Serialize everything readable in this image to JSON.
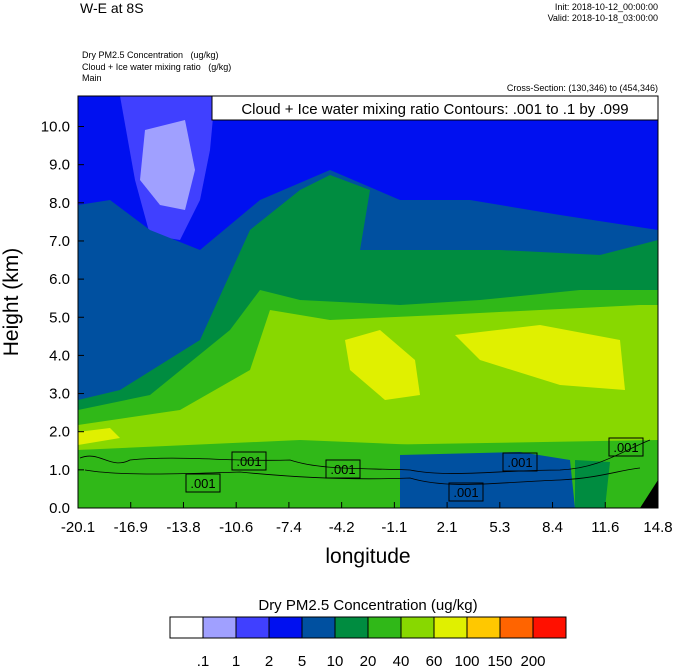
{
  "header": {
    "title": "W-E at 8S",
    "init": "Init: 2018-10-12_00:00:00",
    "valid": "Valid: 2018-10-18_03:00:00",
    "fields": [
      "Dry PM2.5 Concentration   (ug/kg)",
      "Cloud + Ice water mixing ratio   (g/kg)",
      "Main"
    ],
    "cross_section": "Cross-Section: (130,346) to (454,346)"
  },
  "chart_data": {
    "type": "heatmap",
    "title": "Cloud + Ice water mixing ratio Contours: .001 to .1 by .099",
    "xlabel": "longitude",
    "ylabel": "Height (km)",
    "xticks": [
      "-20.1",
      "-16.9",
      "-13.8",
      "-10.6",
      "-7.4",
      "-4.2",
      "-1.1",
      "2.1",
      "5.3",
      "8.4",
      "11.6",
      "14.8"
    ],
    "yticks": [
      "0.0",
      "1.0",
      "2.0",
      "3.0",
      "4.0",
      "5.0",
      "6.0",
      "7.0",
      "8.0",
      "9.0",
      "10.0"
    ],
    "xlim": [
      -20.1,
      14.8
    ],
    "ylim": [
      0,
      10.8
    ],
    "contour_labels": [
      ".001",
      ".001",
      ".001",
      ".001",
      ".001",
      ".001"
    ],
    "colorbar": {
      "title": "Dry PM2.5 Concentration  (ug/kg)",
      "levels": [
        ".1",
        "1",
        "2",
        "5",
        "10",
        "20",
        "40",
        "60",
        "100",
        "150",
        "200"
      ],
      "colors": [
        "#ffffff",
        "#a0a0ff",
        "#4040ff",
        "#0010f0",
        "#0050a0",
        "#008c40",
        "#30b818",
        "#88d800",
        "#e0f000",
        "#ffc800",
        "#ff6400",
        "#ff1000"
      ]
    }
  }
}
